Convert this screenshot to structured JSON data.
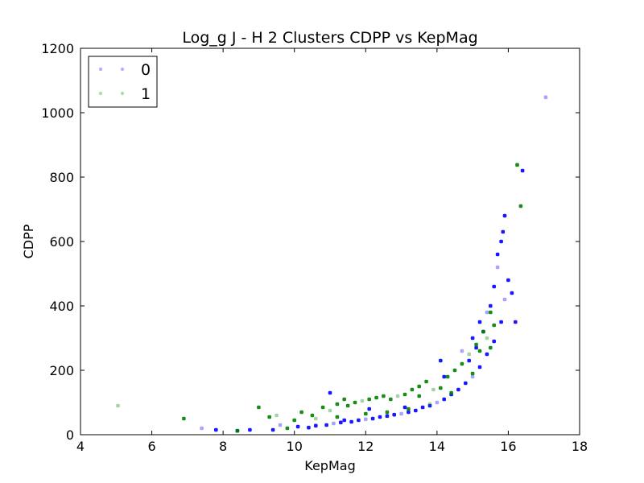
{
  "chart_data": {
    "type": "scatter",
    "title": "Log_g J - H 2 Clusters CDPP vs KepMag",
    "xlabel": "KepMag",
    "ylabel": "CDPP",
    "xlim": [
      4,
      18
    ],
    "ylim": [
      0,
      1200
    ],
    "xticks": [
      "4",
      "6",
      "8",
      "10",
      "12",
      "14",
      "16",
      "18"
    ],
    "yticks": [
      "0",
      "200",
      "400",
      "600",
      "800",
      "1000",
      "1200"
    ],
    "grid": false,
    "legend": {
      "placement": "top-left",
      "entries": [
        "0",
        "1"
      ]
    },
    "colors": {
      "0": "#0000ff",
      "1": "#008000"
    },
    "series": [
      {
        "name": "0",
        "color": "#0000ff",
        "points": [
          [
            7.4,
            20
          ],
          [
            7.8,
            15
          ],
          [
            8.4,
            12
          ],
          [
            8.75,
            15
          ],
          [
            9.4,
            15
          ],
          [
            9.6,
            30
          ],
          [
            10.1,
            25
          ],
          [
            10.4,
            22
          ],
          [
            10.6,
            28
          ],
          [
            10.9,
            30
          ],
          [
            11.1,
            35
          ],
          [
            11.3,
            38
          ],
          [
            11.4,
            45
          ],
          [
            11.6,
            40
          ],
          [
            11.8,
            45
          ],
          [
            12.0,
            48
          ],
          [
            12.2,
            50
          ],
          [
            12.4,
            55
          ],
          [
            12.6,
            58
          ],
          [
            12.8,
            62
          ],
          [
            13.0,
            65
          ],
          [
            13.2,
            70
          ],
          [
            13.4,
            75
          ],
          [
            13.6,
            85
          ],
          [
            13.8,
            90
          ],
          [
            14.0,
            100
          ],
          [
            14.2,
            110
          ],
          [
            14.4,
            125
          ],
          [
            14.6,
            140
          ],
          [
            14.8,
            160
          ],
          [
            15.0,
            180
          ],
          [
            15.2,
            210
          ],
          [
            15.4,
            250
          ],
          [
            15.6,
            290
          ],
          [
            15.8,
            350
          ],
          [
            15.9,
            420
          ],
          [
            16.0,
            480
          ],
          [
            16.1,
            440
          ],
          [
            16.2,
            350
          ],
          [
            14.2,
            180
          ],
          [
            14.7,
            260
          ],
          [
            15.0,
            300
          ],
          [
            15.3,
            320
          ],
          [
            15.5,
            400
          ],
          [
            15.6,
            460
          ],
          [
            15.7,
            520
          ],
          [
            15.8,
            600
          ],
          [
            15.85,
            630
          ],
          [
            15.9,
            680
          ],
          [
            16.4,
            820
          ],
          [
            17.05,
            1048
          ],
          [
            11.0,
            130
          ],
          [
            12.1,
            80
          ],
          [
            13.1,
            85
          ],
          [
            14.1,
            230
          ],
          [
            15.4,
            380
          ],
          [
            14.9,
            230
          ],
          [
            15.1,
            270
          ],
          [
            15.7,
            560
          ],
          [
            15.2,
            350
          ]
        ]
      },
      {
        "name": "1",
        "color": "#008000",
        "points": [
          [
            5.05,
            90
          ],
          [
            6.9,
            50
          ],
          [
            8.4,
            12
          ],
          [
            9.0,
            85
          ],
          [
            9.3,
            55
          ],
          [
            9.5,
            60
          ],
          [
            9.8,
            20
          ],
          [
            10.2,
            70
          ],
          [
            10.5,
            60
          ],
          [
            10.8,
            85
          ],
          [
            11.0,
            75
          ],
          [
            11.2,
            95
          ],
          [
            11.4,
            110
          ],
          [
            11.5,
            90
          ],
          [
            11.7,
            100
          ],
          [
            11.9,
            105
          ],
          [
            12.1,
            110
          ],
          [
            12.3,
            115
          ],
          [
            12.5,
            120
          ],
          [
            12.7,
            110
          ],
          [
            12.9,
            120
          ],
          [
            13.1,
            125
          ],
          [
            13.3,
            140
          ],
          [
            13.5,
            150
          ],
          [
            13.7,
            165
          ],
          [
            13.9,
            140
          ],
          [
            14.1,
            145
          ],
          [
            14.3,
            180
          ],
          [
            14.5,
            200
          ],
          [
            14.7,
            220
          ],
          [
            14.9,
            250
          ],
          [
            15.1,
            280
          ],
          [
            15.3,
            320
          ],
          [
            15.5,
            380
          ],
          [
            15.6,
            340
          ],
          [
            15.4,
            300
          ],
          [
            15.2,
            260
          ],
          [
            16.25,
            838
          ],
          [
            16.35,
            710
          ],
          [
            10.0,
            45
          ],
          [
            10.6,
            50
          ],
          [
            11.2,
            55
          ],
          [
            12.0,
            65
          ],
          [
            12.6,
            70
          ],
          [
            13.2,
            80
          ],
          [
            13.8,
            95
          ],
          [
            14.4,
            130
          ],
          [
            15.0,
            190
          ],
          [
            15.5,
            270
          ],
          [
            13.5,
            120
          ]
        ]
      }
    ]
  }
}
